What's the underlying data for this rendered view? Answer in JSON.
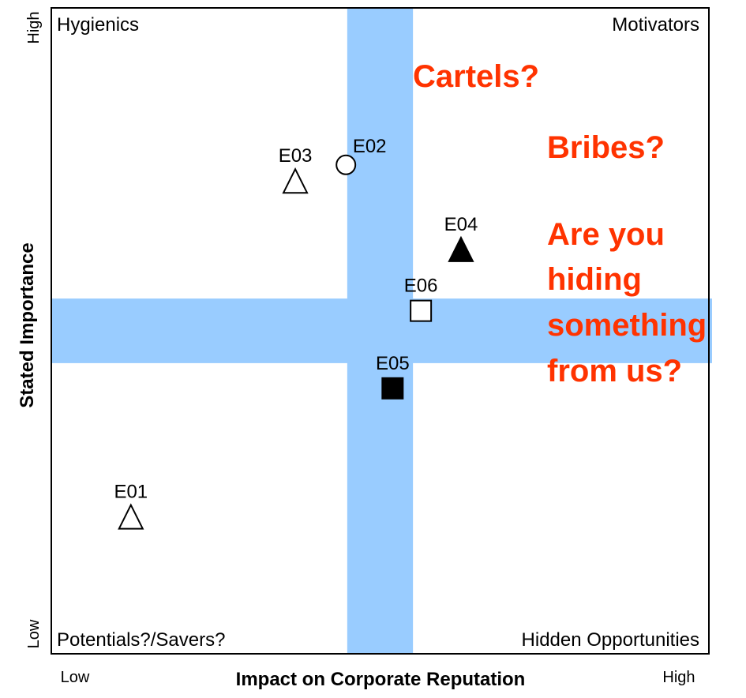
{
  "chart_data": {
    "type": "scatter",
    "x_label": "Impact on Corporate Reputation",
    "y_label": "Stated Importance",
    "xticks": [
      {
        "value": 0,
        "label": "Low"
      },
      {
        "value": 100,
        "label": "High"
      }
    ],
    "yticks": [
      {
        "value": 0,
        "label": "Low"
      },
      {
        "value": 100,
        "label": "High"
      }
    ],
    "xlim": [
      0,
      100
    ],
    "ylim": [
      0,
      100
    ],
    "quadrants": {
      "top_left": "Hygienics",
      "top_right": "Motivators",
      "bottom_left": "Potentials?/Savers?",
      "bottom_right": "Hidden Opportunities"
    },
    "bands": {
      "x": [
        45,
        55
      ],
      "y": [
        45,
        55
      ],
      "color": "#99ccff"
    },
    "annotations": [
      "Cartels?",
      "Bribes?",
      "Are you",
      "hiding",
      "something",
      "from us?"
    ],
    "annotation_color": "#ff3300",
    "points": [
      {
        "label": "E01",
        "x": 12.1,
        "y": 21.2,
        "marker": "triangle",
        "filled": false
      },
      {
        "label": "E02",
        "x": 44.8,
        "y": 75.7,
        "marker": "circle",
        "filled": false
      },
      {
        "label": "E03",
        "x": 37.1,
        "y": 73.2,
        "marker": "triangle",
        "filled": false
      },
      {
        "label": "E04",
        "x": 62.3,
        "y": 62.6,
        "marker": "triangle",
        "filled": true
      },
      {
        "label": "E05",
        "x": 51.9,
        "y": 41.1,
        "marker": "square",
        "filled": true
      },
      {
        "label": "E06",
        "x": 56.2,
        "y": 53.1,
        "marker": "square",
        "filled": false
      }
    ]
  }
}
